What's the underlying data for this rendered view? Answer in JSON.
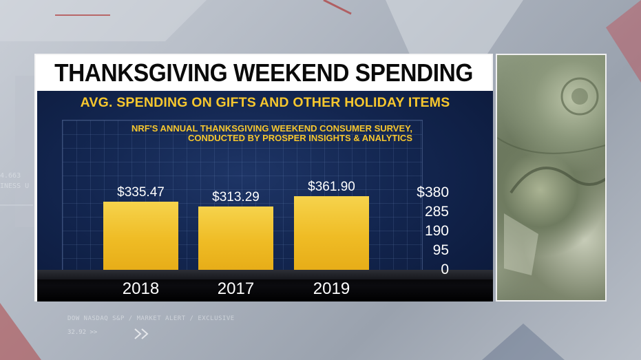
{
  "title": "THANKSGIVING WEEKEND SPENDING",
  "subtitle": "AVG. SPENDING ON GIFTS AND OTHER HOLIDAY ITEMS",
  "survey_lines": [
    "NRF'S ANNUAL THANKSGIVING WEEKEND CONSUMER SURVEY,",
    "CONDUCTED BY PROSPER INSIGHTS & ANALYTICS"
  ],
  "background": {
    "ticker_lines": [
      "4.663",
      "INESS U"
    ],
    "bottom_line": "DOW  NASDAQ  S&P   /  MARKET ALERT  /  EXCLUSIVE",
    "bottom_value": "32.92  >>"
  },
  "colors": {
    "accent_yellow": "#f7c72e",
    "panel_navy": "#132650",
    "bar_gold": "#efbc25"
  },
  "chart_data": {
    "type": "bar",
    "categories": [
      "2018",
      "2017",
      "2019"
    ],
    "values": [
      335.47,
      313.29,
      361.9
    ],
    "value_labels": [
      "$335.47",
      "$313.29",
      "$361.90"
    ],
    "yticks": [
      "$380",
      "285",
      "190",
      "95",
      "0"
    ],
    "ylim": [
      0,
      380
    ],
    "grid": true,
    "legend": "none"
  }
}
